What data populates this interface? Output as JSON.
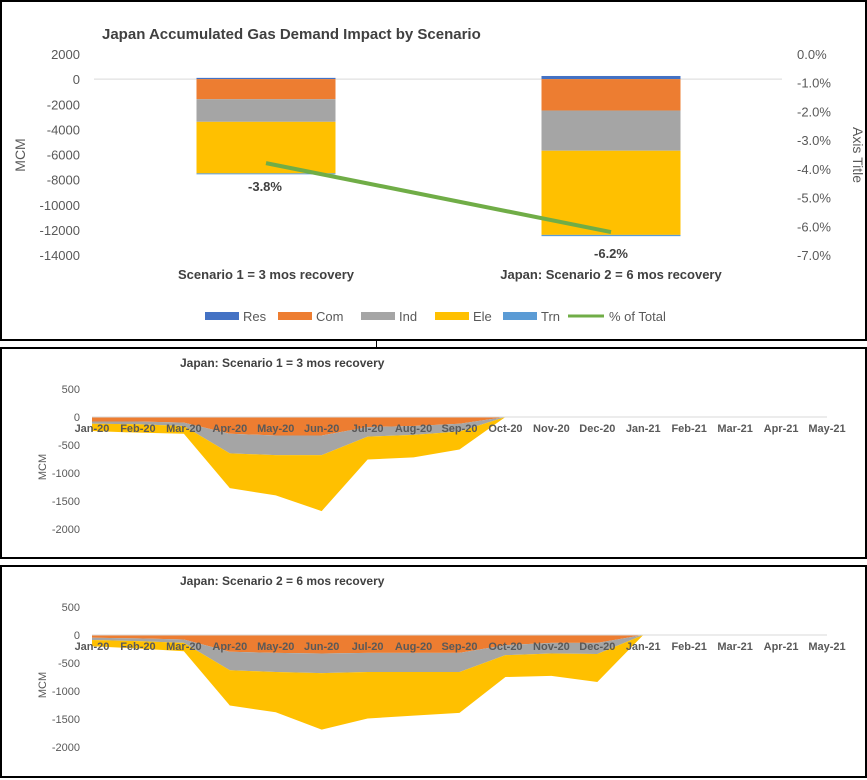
{
  "chart_data": [
    {
      "type": "bar",
      "stacked": true,
      "title": "Japan Accumulated Gas Demand Impact by Scenario",
      "ylabel": "MCM",
      "y2label": "Axis Title",
      "ylim": [
        -14000,
        2000
      ],
      "yticks": [
        2000,
        0,
        -2000,
        -4000,
        -6000,
        -8000,
        -10000,
        -12000,
        -14000
      ],
      "y2lim": [
        -7.0,
        0.0
      ],
      "y2ticks": [
        "0.0%",
        "-1.0%",
        "-2.0%",
        "-3.0%",
        "-4.0%",
        "-5.0%",
        "-6.0%",
        "-7.0%"
      ],
      "categories": [
        "Scenario 1 = 3 mos recovery",
        "Japan: Scenario 2 = 6 mos recovery"
      ],
      "series": [
        {
          "name": "Res",
          "color": "#4472C4",
          "values": [
            100,
            250
          ]
        },
        {
          "name": "Com",
          "color": "#ED7D31",
          "values": [
            -1600,
            -2500
          ]
        },
        {
          "name": "Ind",
          "color": "#A5A5A5",
          "values": [
            -1800,
            -3200
          ]
        },
        {
          "name": "Ele",
          "color": "#FFC000",
          "values": [
            -4100,
            -6700
          ]
        },
        {
          "name": "Trn",
          "color": "#5B9BD5",
          "values": [
            -50,
            -100
          ]
        }
      ],
      "line_series": {
        "name": "% of Total",
        "color": "#70AD47",
        "values": [
          -3.8,
          -6.2
        ]
      },
      "data_labels": [
        "-3.8%",
        "-6.2%"
      ],
      "legend_position": "bottom",
      "grid": false
    },
    {
      "type": "area",
      "stacked": true,
      "title": "Japan: Scenario 1 = 3 mos recovery",
      "ylabel": "MCM",
      "ylim": [
        -2000,
        500
      ],
      "yticks": [
        500,
        0,
        -500,
        -1000,
        -1500,
        -2000
      ],
      "categories": [
        "Jan-20",
        "Feb-20",
        "Mar-20",
        "Apr-20",
        "May-20",
        "Jun-20",
        "Jul-20",
        "Aug-20",
        "Sep-20",
        "Oct-20",
        "Nov-20",
        "Dec-20",
        "Jan-21",
        "Feb-21",
        "Mar-21",
        "Apr-21",
        "May-21"
      ],
      "series": [
        {
          "name": "Com",
          "color": "#ED7D31",
          "values": [
            -80,
            -80,
            -100,
            -300,
            -330,
            -330,
            -180,
            -160,
            -120,
            0,
            null,
            null,
            null,
            null,
            null,
            null,
            null
          ]
        },
        {
          "name": "Ind",
          "color": "#A5A5A5",
          "values": [
            -40,
            -50,
            -60,
            -350,
            -350,
            -350,
            -170,
            -160,
            -140,
            0,
            null,
            null,
            null,
            null,
            null,
            null,
            null
          ]
        },
        {
          "name": "Ele",
          "color": "#FFC000",
          "values": [
            -130,
            -150,
            -140,
            -620,
            -720,
            -1000,
            -410,
            -400,
            -320,
            0,
            null,
            null,
            null,
            null,
            null,
            null,
            null
          ]
        }
      ],
      "grid": false
    },
    {
      "type": "area",
      "stacked": true,
      "title": "Japan: Scenario 2 = 6 mos recovery",
      "ylabel": "MCM",
      "ylim": [
        -2000,
        500
      ],
      "yticks": [
        500,
        0,
        -500,
        -1000,
        -1500,
        -2000
      ],
      "categories": [
        "Jan-20",
        "Feb-20",
        "Mar-20",
        "Apr-20",
        "May-20",
        "Jun-20",
        "Jul-20",
        "Aug-20",
        "Sep-20",
        "Oct-20",
        "Nov-20",
        "Dec-20",
        "Jan-21",
        "Feb-21",
        "Mar-21",
        "Apr-21",
        "May-21"
      ],
      "series": [
        {
          "name": "Com",
          "color": "#ED7D31",
          "values": [
            -50,
            -60,
            -80,
            -300,
            -320,
            -330,
            -320,
            -320,
            -320,
            -180,
            -140,
            -140,
            0,
            null,
            null,
            null,
            null
          ]
        },
        {
          "name": "Ind",
          "color": "#A5A5A5",
          "values": [
            -40,
            -50,
            -60,
            -330,
            -340,
            -350,
            -340,
            -340,
            -340,
            -180,
            -190,
            -200,
            0,
            null,
            null,
            null,
            null
          ]
        },
        {
          "name": "Ele",
          "color": "#FFC000",
          "values": [
            -110,
            -130,
            -150,
            -630,
            -720,
            -1010,
            -830,
            -780,
            -730,
            -390,
            -400,
            -500,
            0,
            null,
            null,
            null,
            null
          ]
        }
      ],
      "grid": false
    }
  ]
}
